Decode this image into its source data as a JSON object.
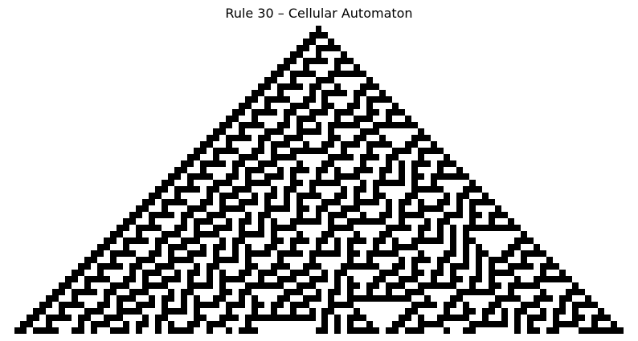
{
  "title": "Rule 30 – Cellular Automaton",
  "automaton": {
    "rule": 30,
    "generations": 48,
    "initial_state": "single live cell at center",
    "live_color": "#000000",
    "dead_color": "#ffffff",
    "axes_visible": false
  }
}
